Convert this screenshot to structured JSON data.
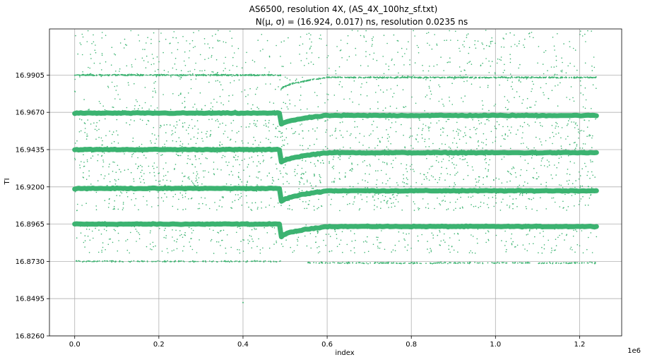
{
  "chart_data": {
    "type": "scatter",
    "title": "AS6500, resolution 4X, (AS_4X_100hz_sf.txt)",
    "subtitle": "N(μ, σ) = (16.924, 0.017) ns, resolution 0.0235 ns",
    "xlabel": "index",
    "ylabel": "TI",
    "x_multiplier_label": "1e6",
    "xlim": [
      -0.06,
      1.3
    ],
    "ylim": [
      16.826,
      17.0196
    ],
    "x_ticks": [
      0.0,
      0.2,
      0.4,
      0.6,
      0.8,
      1.0,
      1.2
    ],
    "x_tick_labels": [
      "0.0",
      "0.2",
      "0.4",
      "0.6",
      "0.8",
      "1.0",
      "1.2"
    ],
    "y_ticks": [
      16.826,
      16.8495,
      16.873,
      16.8965,
      16.92,
      16.9435,
      16.967,
      16.9905
    ],
    "y_tick_labels": [
      "16.8260",
      "16.8495",
      "16.8730",
      "16.8965",
      "16.9200",
      "16.9435",
      "16.9670",
      "16.9905"
    ],
    "grid": true,
    "color": "#3cb371",
    "x_extent": [
      0.0,
      1.24
    ],
    "levels": [
      {
        "name": "16.8730",
        "before": 16.873,
        "dip": 16.873,
        "after": 16.872,
        "density": "sparse"
      },
      {
        "name": "16.8965",
        "before": 16.8965,
        "dip": 16.888,
        "after": 16.895,
        "density": "dense"
      },
      {
        "name": "16.9200",
        "before": 16.919,
        "dip": 16.91,
        "after": 16.9175,
        "density": "dense"
      },
      {
        "name": "16.9435",
        "before": 16.9435,
        "dip": 16.935,
        "after": 16.9415,
        "density": "dense"
      },
      {
        "name": "16.9670",
        "before": 16.9665,
        "dip": 16.959,
        "after": 16.965,
        "density": "dense"
      },
      {
        "name": "16.9905",
        "before": 16.9905,
        "dip": 16.981,
        "after": 16.989,
        "density": "medium"
      }
    ],
    "step_x": 0.49,
    "recovery_end_x": 0.6,
    "notes_outlier": {
      "x": 0.4,
      "y": 16.847
    }
  }
}
